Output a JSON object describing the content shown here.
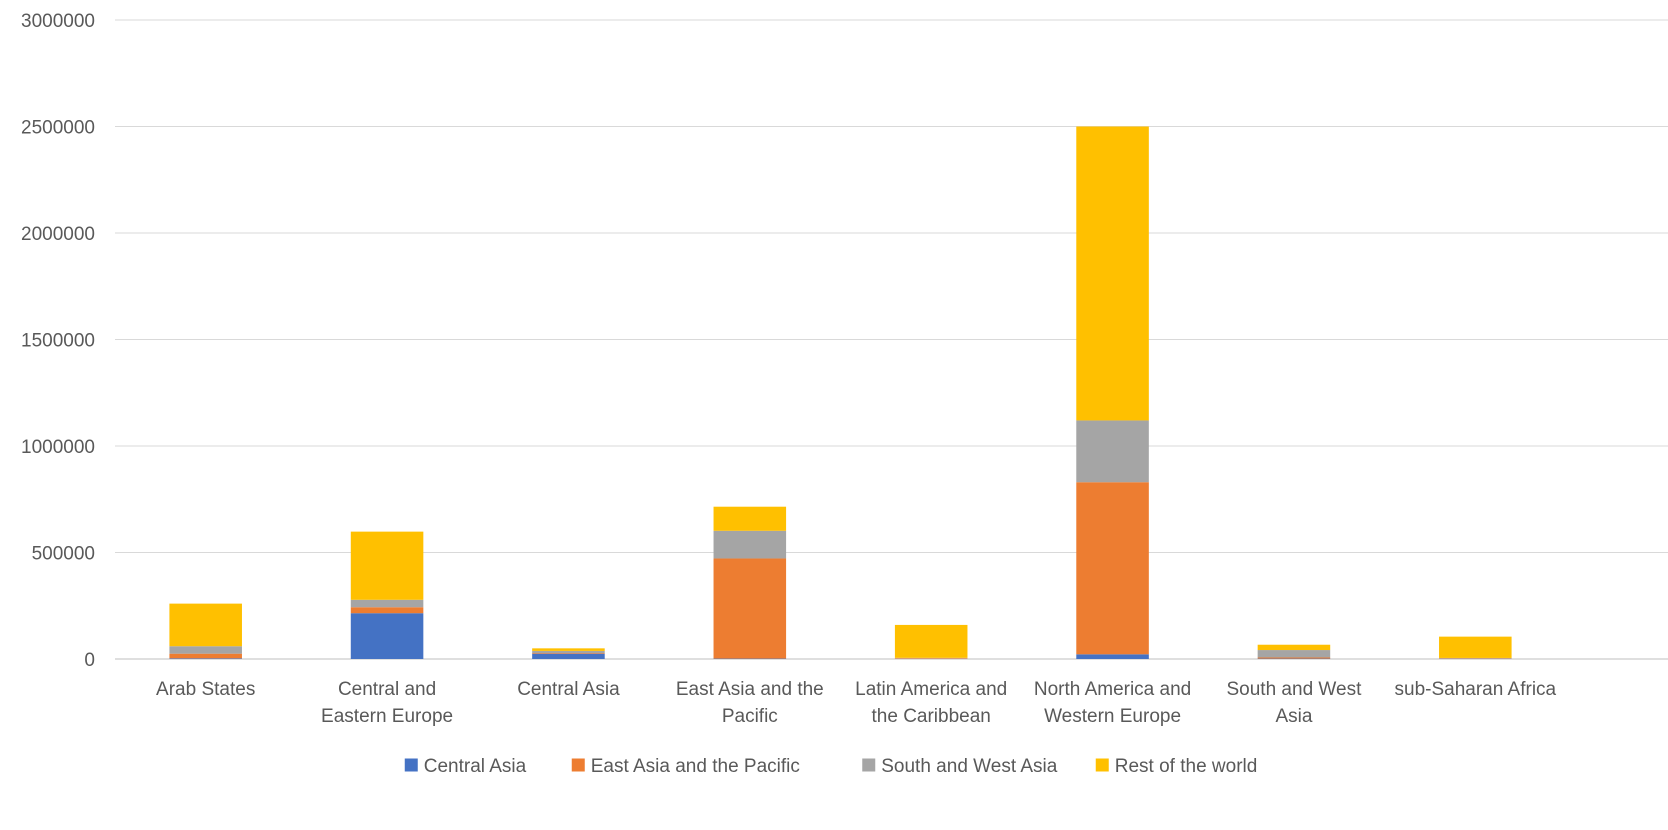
{
  "chart_data": {
    "type": "bar",
    "stacked": true,
    "title": "",
    "xlabel": "",
    "ylabel": "",
    "ylim": [
      0,
      3000000
    ],
    "yticks": [
      "0",
      "500000",
      "1000000",
      "1500000",
      "2000000",
      "2500000",
      "3000000"
    ],
    "grid": true,
    "legend_position": "bottom",
    "categories": [
      "Arab States",
      "Central and Eastern Europe",
      "Central Asia",
      "East Asia and the Pacific",
      "Latin America and the Caribbean",
      "North America and Western Europe",
      "South and West Asia",
      "sub-Saharan Africa"
    ],
    "category_lines": [
      [
        "Arab States"
      ],
      [
        "Central and",
        "Eastern Europe"
      ],
      [
        "Central Asia"
      ],
      [
        "East Asia and the",
        "Pacific"
      ],
      [
        "Latin America and",
        "the Caribbean"
      ],
      [
        "North America and",
        "Western Europe"
      ],
      [
        "South and West",
        "Asia"
      ],
      [
        "sub-Saharan Africa"
      ]
    ],
    "series": [
      {
        "name": "Central Asia",
        "color": "#4472C4",
        "values": [
          3000,
          215000,
          25000,
          2000,
          500,
          22000,
          2000,
          1000
        ]
      },
      {
        "name": "East Asia and the Pacific",
        "color": "#ED7D31",
        "values": [
          22000,
          28000,
          3000,
          470000,
          3000,
          808000,
          5000,
          2000
        ]
      },
      {
        "name": "South and West Asia",
        "color": "#A5A5A5",
        "values": [
          35000,
          35000,
          10000,
          130000,
          2000,
          290000,
          35000,
          2000
        ]
      },
      {
        "name": "Rest of the world",
        "color": "#FFC000",
        "values": [
          200000,
          320000,
          12000,
          113000,
          154500,
          1380000,
          25000,
          100000
        ]
      }
    ]
  }
}
